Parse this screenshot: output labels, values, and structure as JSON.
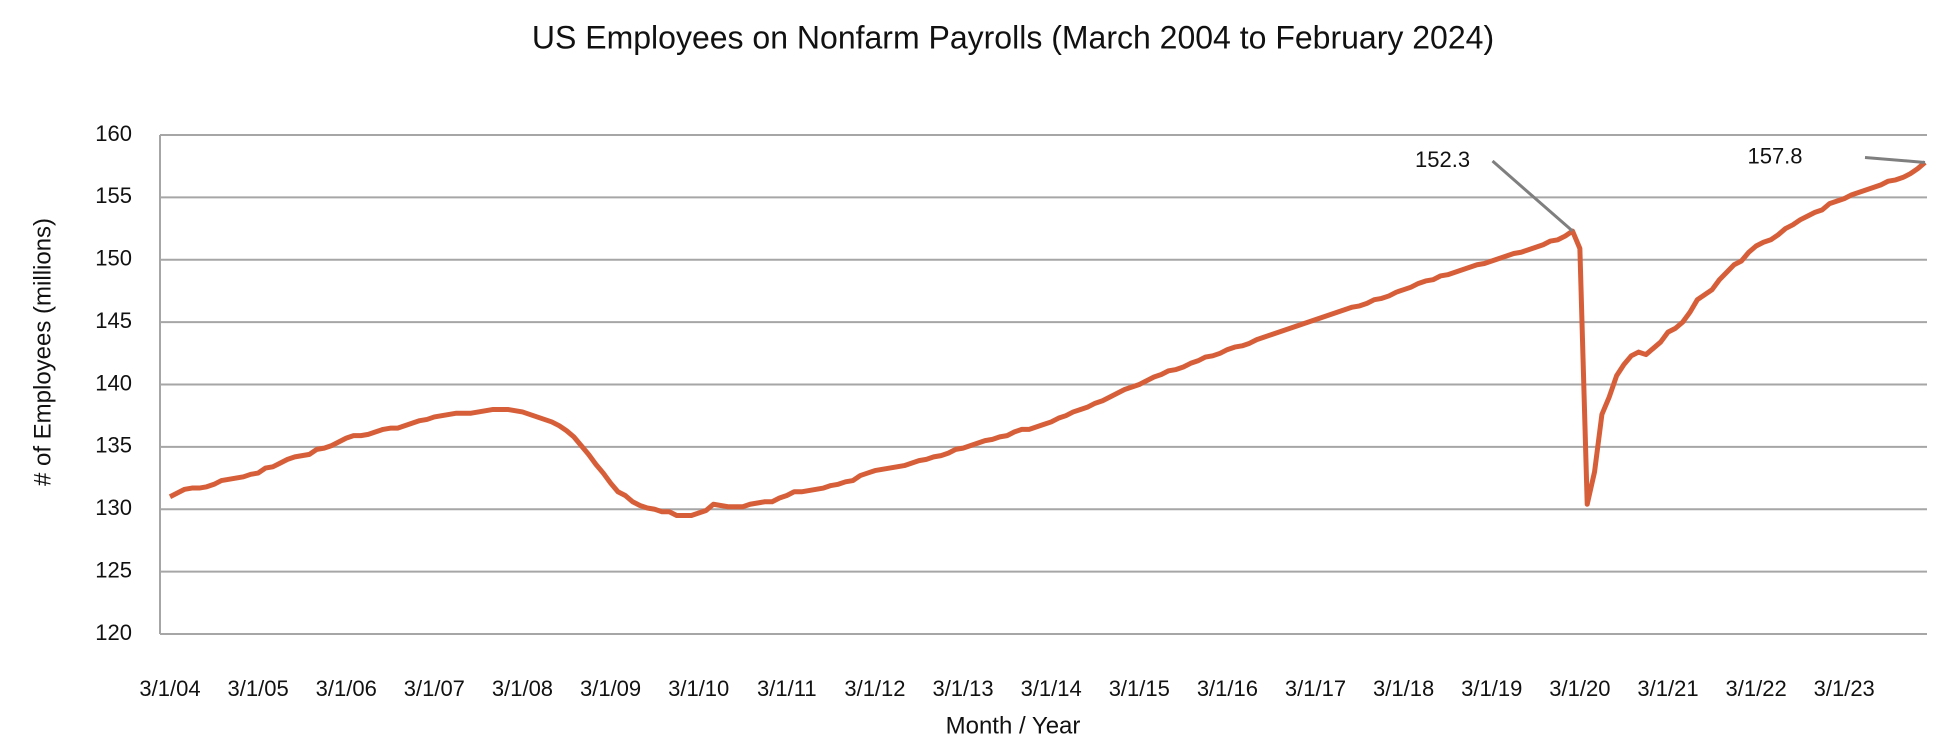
{
  "chart_data": {
    "type": "line",
    "title": "US Employees on Nonfarm Payrolls (March 2004 to February 2024)",
    "x_label": "Month / Year",
    "y_label": "# of Employees (millions)",
    "categories": [
      "3/1/04",
      null,
      null,
      null,
      null,
      null,
      null,
      null,
      null,
      null,
      null,
      null,
      "3/1/05",
      null,
      null,
      null,
      null,
      null,
      null,
      null,
      null,
      null,
      null,
      null,
      "3/1/06",
      null,
      null,
      null,
      null,
      null,
      null,
      null,
      null,
      null,
      null,
      null,
      "3/1/07",
      null,
      null,
      null,
      null,
      null,
      null,
      null,
      null,
      null,
      null,
      null,
      "3/1/08",
      null,
      null,
      null,
      null,
      null,
      null,
      null,
      null,
      null,
      null,
      null,
      "3/1/09",
      null,
      null,
      null,
      null,
      null,
      null,
      null,
      null,
      null,
      null,
      null,
      "3/1/10",
      null,
      null,
      null,
      null,
      null,
      null,
      null,
      null,
      null,
      null,
      null,
      "3/1/11",
      null,
      null,
      null,
      null,
      null,
      null,
      null,
      null,
      null,
      null,
      null,
      "3/1/12",
      null,
      null,
      null,
      null,
      null,
      null,
      null,
      null,
      null,
      null,
      null,
      "3/1/13",
      null,
      null,
      null,
      null,
      null,
      null,
      null,
      null,
      null,
      null,
      null,
      "3/1/14",
      null,
      null,
      null,
      null,
      null,
      null,
      null,
      null,
      null,
      null,
      null,
      "3/1/15",
      null,
      null,
      null,
      null,
      null,
      null,
      null,
      null,
      null,
      null,
      null,
      "3/1/16",
      null,
      null,
      null,
      null,
      null,
      null,
      null,
      null,
      null,
      null,
      null,
      "3/1/17",
      null,
      null,
      null,
      null,
      null,
      null,
      null,
      null,
      null,
      null,
      null,
      "3/1/18",
      null,
      null,
      null,
      null,
      null,
      null,
      null,
      null,
      null,
      null,
      null,
      "3/1/19",
      null,
      null,
      null,
      null,
      null,
      null,
      null,
      null,
      null,
      null,
      null,
      "3/1/20",
      null,
      null,
      null,
      null,
      null,
      null,
      null,
      null,
      null,
      null,
      null,
      "3/1/21",
      null,
      null,
      null,
      null,
      null,
      null,
      null,
      null,
      null,
      null,
      null,
      "3/1/22",
      null,
      null,
      null,
      null,
      null,
      null,
      null,
      null,
      null,
      null,
      null,
      "3/1/23",
      null,
      null,
      null,
      null,
      null,
      null,
      null,
      null,
      null,
      null,
      null
    ],
    "series": [
      {
        "name": "Employees",
        "color": "#d65f3a",
        "values": [
          131.0,
          131.3,
          131.6,
          131.7,
          131.7,
          131.8,
          132.0,
          132.3,
          132.4,
          132.5,
          132.6,
          132.8,
          132.9,
          133.3,
          133.4,
          133.7,
          134.0,
          134.2,
          134.3,
          134.4,
          134.8,
          134.9,
          135.1,
          135.4,
          135.7,
          135.9,
          135.9,
          136.0,
          136.2,
          136.4,
          136.5,
          136.5,
          136.7,
          136.9,
          137.1,
          137.2,
          137.4,
          137.5,
          137.6,
          137.7,
          137.7,
          137.7,
          137.8,
          137.9,
          138.0,
          138.0,
          138.0,
          137.9,
          137.8,
          137.6,
          137.4,
          137.2,
          137.0,
          136.7,
          136.3,
          135.8,
          135.1,
          134.4,
          133.6,
          132.9,
          132.1,
          131.4,
          131.1,
          130.6,
          130.3,
          130.1,
          130.0,
          129.8,
          129.8,
          129.5,
          129.5,
          129.5,
          129.7,
          129.9,
          130.4,
          130.3,
          130.2,
          130.2,
          130.2,
          130.4,
          130.5,
          130.6,
          130.6,
          130.9,
          131.1,
          131.4,
          131.4,
          131.5,
          131.6,
          131.7,
          131.9,
          132.0,
          132.2,
          132.3,
          132.7,
          132.9,
          133.1,
          133.2,
          133.3,
          133.4,
          133.5,
          133.7,
          133.9,
          134.0,
          134.2,
          134.3,
          134.5,
          134.8,
          134.9,
          135.1,
          135.3,
          135.5,
          135.6,
          135.8,
          135.9,
          136.2,
          136.4,
          136.4,
          136.6,
          136.8,
          137.0,
          137.3,
          137.5,
          137.8,
          138.0,
          138.2,
          138.5,
          138.7,
          139.0,
          139.3,
          139.6,
          139.8,
          140.0,
          140.3,
          140.6,
          140.8,
          141.1,
          141.2,
          141.4,
          141.7,
          141.9,
          142.2,
          142.3,
          142.5,
          142.8,
          143.0,
          143.1,
          143.3,
          143.6,
          143.8,
          144.0,
          144.2,
          144.4,
          144.6,
          144.8,
          145.0,
          145.2,
          145.4,
          145.6,
          145.8,
          146.0,
          146.2,
          146.3,
          146.5,
          146.8,
          146.9,
          147.1,
          147.4,
          147.6,
          147.8,
          148.1,
          148.3,
          148.4,
          148.7,
          148.8,
          149.0,
          149.2,
          149.4,
          149.6,
          149.7,
          149.9,
          150.1,
          150.3,
          150.5,
          150.6,
          150.8,
          151.0,
          151.2,
          151.5,
          151.6,
          151.9,
          152.3,
          150.9,
          130.4,
          133.0,
          137.6,
          139.0,
          140.7,
          141.6,
          142.3,
          142.6,
          142.4,
          142.9,
          143.4,
          144.2,
          144.5,
          145.0,
          145.8,
          146.8,
          147.2,
          147.6,
          148.4,
          149.0,
          149.6,
          149.9,
          150.6,
          151.1,
          151.4,
          151.6,
          152.0,
          152.5,
          152.8,
          153.2,
          153.5,
          153.8,
          154.0,
          154.5,
          154.7,
          154.9,
          155.2,
          155.4,
          155.6,
          155.8,
          156.0,
          156.3,
          156.4,
          156.6,
          156.9,
          157.3,
          157.8
        ]
      }
    ],
    "annotations": [
      "152.3",
      "157.8"
    ],
    "ylim": [
      120,
      160
    ],
    "yticks": [
      120,
      125,
      130,
      135,
      140,
      145,
      150,
      155,
      160
    ],
    "grid": true
  }
}
